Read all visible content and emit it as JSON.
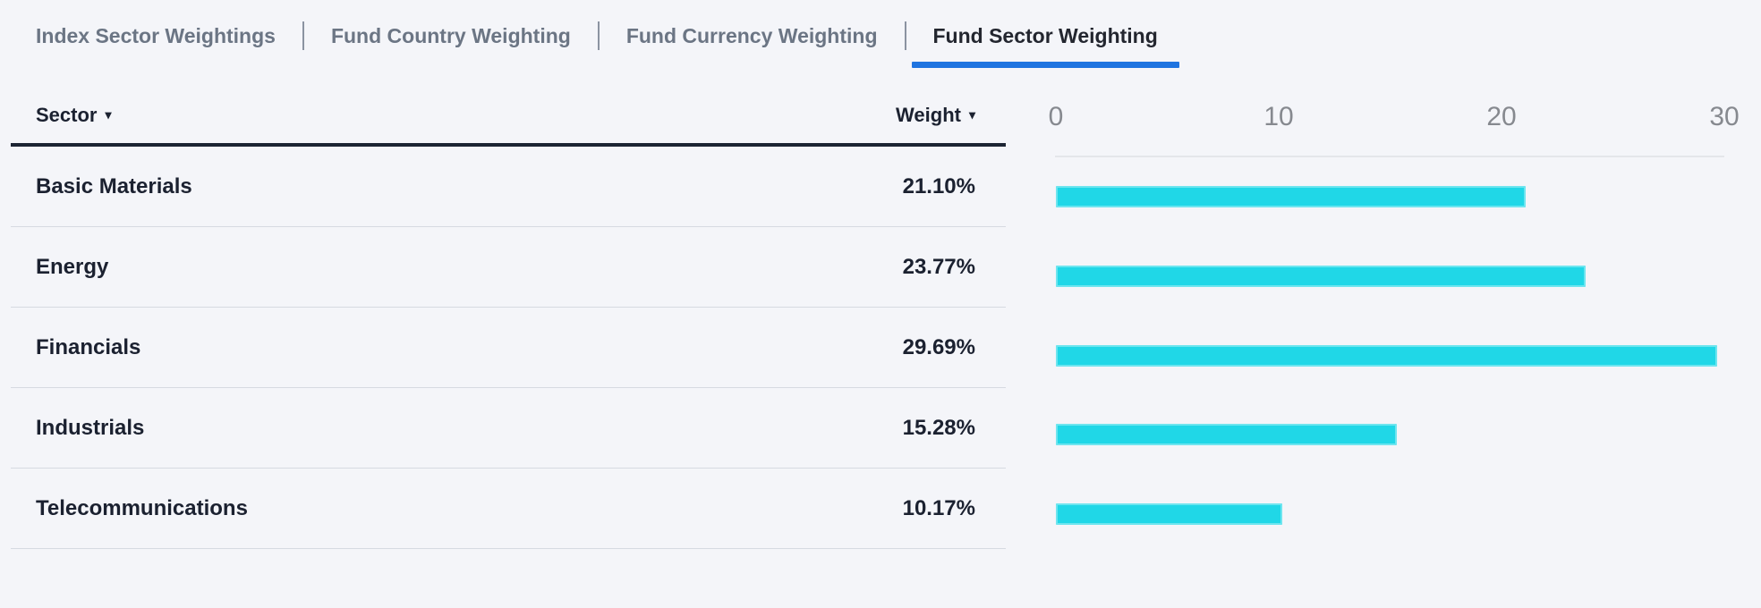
{
  "tabs": {
    "items": [
      {
        "label": "Index Sector Weightings",
        "active": false
      },
      {
        "label": "Fund Country Weighting",
        "active": false
      },
      {
        "label": "Fund Currency Weighting",
        "active": false
      },
      {
        "label": "Fund Sector Weighting",
        "active": true
      }
    ]
  },
  "table": {
    "columns": [
      {
        "label": "Sector",
        "sort_icon": "▾"
      },
      {
        "label": "Weight",
        "sort_icon": "▾"
      }
    ],
    "rows": [
      {
        "sector": "Basic Materials",
        "weight": "21.10%"
      },
      {
        "sector": "Energy",
        "weight": "23.77%"
      },
      {
        "sector": "Financials",
        "weight": "29.69%"
      },
      {
        "sector": "Industrials",
        "weight": "15.28%"
      },
      {
        "sector": "Telecommunications",
        "weight": "10.17%"
      }
    ]
  },
  "chart_data": {
    "type": "bar",
    "orientation": "horizontal",
    "title": "",
    "xlabel": "",
    "ylabel": "",
    "categories": [
      "Basic Materials",
      "Energy",
      "Financials",
      "Industrials",
      "Telecommunications"
    ],
    "values": [
      21.1,
      23.77,
      29.69,
      15.28,
      10.17
    ],
    "xlim": [
      0,
      30
    ],
    "xticks": [
      0,
      10,
      20,
      30
    ],
    "grid": false,
    "legend": false,
    "bar_color": "#20d7e7"
  },
  "colors": {
    "accent_blue": "#1f74e0",
    "bar_cyan": "#20d7e7",
    "text_dark": "#1b2130",
    "tab_inactive": "#6b7584",
    "axis_gray": "#86898f",
    "background": "#f4f5f9"
  }
}
